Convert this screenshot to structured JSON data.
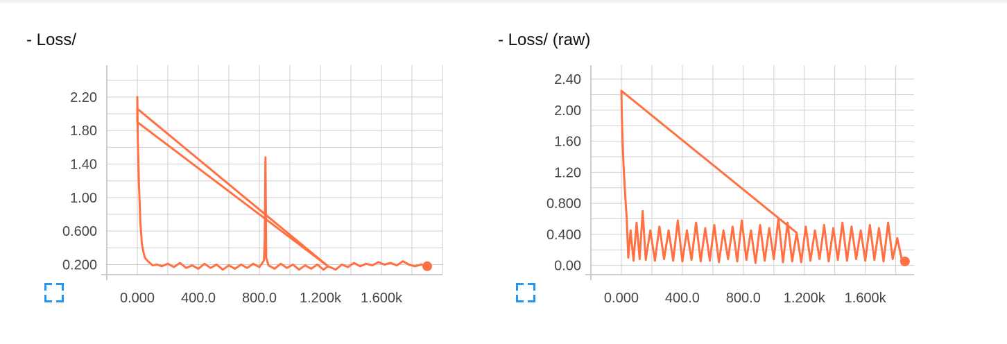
{
  "chart_data": [
    {
      "type": "line",
      "title": "- Loss/",
      "x_ticks": [
        "0.000",
        "400.0",
        "800.0",
        "1.200k",
        "1.600k"
      ],
      "x_tick_values": [
        0,
        400,
        800,
        1200,
        1600
      ],
      "y_ticks": [
        "0.200",
        "0.600",
        "1.00",
        "1.40",
        "1.80",
        "2.20"
      ],
      "y_tick_values": [
        0.2,
        0.6,
        1.0,
        1.4,
        1.8,
        2.2
      ],
      "xlim": [
        -200,
        2000
      ],
      "ylim": [
        0.08,
        2.58
      ],
      "grid": true,
      "series": [
        {
          "color": "#ff7043",
          "points": [
            [
              0,
              2.06
            ],
            [
              1250,
              0.18
            ],
            [
              1220,
              0.14
            ],
            [
              1180,
              0.2
            ],
            [
              1140,
              0.15
            ],
            [
              1100,
              0.19
            ],
            [
              1060,
              0.14
            ],
            [
              1020,
              0.2
            ],
            [
              980,
              0.16
            ],
            [
              940,
              0.21
            ],
            [
              900,
              0.15
            ],
            [
              860,
              0.19
            ],
            [
              845,
              0.28
            ],
            [
              840,
              1.48
            ],
            [
              835,
              0.5
            ],
            [
              830,
              0.25
            ],
            [
              800,
              0.17
            ],
            [
              760,
              0.21
            ],
            [
              720,
              0.16
            ],
            [
              680,
              0.2
            ],
            [
              640,
              0.15
            ],
            [
              600,
              0.19
            ],
            [
              560,
              0.14
            ],
            [
              520,
              0.2
            ],
            [
              480,
              0.16
            ],
            [
              440,
              0.21
            ],
            [
              400,
              0.15
            ],
            [
              360,
              0.19
            ],
            [
              320,
              0.16
            ],
            [
              280,
              0.22
            ],
            [
              240,
              0.17
            ],
            [
              200,
              0.21
            ],
            [
              160,
              0.18
            ],
            [
              130,
              0.2
            ],
            [
              100,
              0.19
            ],
            [
              70,
              0.24
            ],
            [
              50,
              0.28
            ],
            [
              40,
              0.35
            ],
            [
              30,
              0.45
            ],
            [
              20,
              0.7
            ],
            [
              10,
              1.2
            ],
            [
              3,
              1.7
            ],
            [
              0,
              2.2
            ],
            [
              0,
              2.0
            ],
            [
              0,
              1.9
            ],
            [
              1250,
              0.18
            ],
            [
              1300,
              0.14
            ],
            [
              1340,
              0.2
            ],
            [
              1380,
              0.17
            ],
            [
              1420,
              0.22
            ],
            [
              1460,
              0.18
            ],
            [
              1500,
              0.21
            ],
            [
              1540,
              0.19
            ],
            [
              1580,
              0.23
            ],
            [
              1620,
              0.2
            ],
            [
              1660,
              0.22
            ],
            [
              1700,
              0.19
            ],
            [
              1740,
              0.24
            ],
            [
              1780,
              0.2
            ],
            [
              1820,
              0.18
            ],
            [
              1860,
              0.2
            ],
            [
              1900,
              0.18
            ]
          ]
        }
      ]
    },
    {
      "type": "line",
      "title": "- Loss/ (raw)",
      "x_ticks": [
        "0.000",
        "400.0",
        "800.0",
        "1.200k",
        "1.600k"
      ],
      "x_tick_values": [
        0,
        400,
        800,
        1200,
        1600
      ],
      "y_ticks": [
        "0.00",
        "0.400",
        "0.800",
        "1.20",
        "1.60",
        "2.00",
        "2.40"
      ],
      "y_tick_values": [
        0,
        0.4,
        0.8,
        1.2,
        1.6,
        2.0,
        2.4
      ],
      "xlim": [
        -200,
        1920
      ],
      "ylim": [
        -0.12,
        2.58
      ],
      "grid": true,
      "series": [
        {
          "color": "#ff7043",
          "points": [
            [
              0,
              2.25
            ],
            [
              1150,
              0.42
            ],
            [
              1120,
              0.05
            ],
            [
              1090,
              0.55
            ],
            [
              1060,
              0.04
            ],
            [
              1030,
              0.6
            ],
            [
              1000,
              0.08
            ],
            [
              970,
              0.48
            ],
            [
              940,
              0.06
            ],
            [
              910,
              0.52
            ],
            [
              880,
              0.03
            ],
            [
              850,
              0.45
            ],
            [
              820,
              0.07
            ],
            [
              790,
              0.58
            ],
            [
              760,
              0.05
            ],
            [
              730,
              0.5
            ],
            [
              700,
              0.08
            ],
            [
              670,
              0.45
            ],
            [
              640,
              0.04
            ],
            [
              610,
              0.52
            ],
            [
              580,
              0.06
            ],
            [
              550,
              0.48
            ],
            [
              520,
              0.05
            ],
            [
              490,
              0.55
            ],
            [
              460,
              0.07
            ],
            [
              430,
              0.45
            ],
            [
              400,
              0.05
            ],
            [
              370,
              0.58
            ],
            [
              340,
              0.06
            ],
            [
              310,
              0.45
            ],
            [
              280,
              0.08
            ],
            [
              250,
              0.5
            ],
            [
              220,
              0.06
            ],
            [
              190,
              0.45
            ],
            [
              160,
              0.07
            ],
            [
              140,
              0.7
            ],
            [
              120,
              0.08
            ],
            [
              100,
              0.55
            ],
            [
              80,
              0.06
            ],
            [
              60,
              0.45
            ],
            [
              45,
              0.1
            ],
            [
              35,
              0.6
            ],
            [
              25,
              0.9
            ],
            [
              15,
              1.25
            ],
            [
              8,
              1.6
            ],
            [
              3,
              1.95
            ],
            [
              0,
              2.25
            ],
            [
              1150,
              0.42
            ],
            [
              1180,
              0.04
            ],
            [
              1210,
              0.5
            ],
            [
              1240,
              0.06
            ],
            [
              1270,
              0.45
            ],
            [
              1300,
              0.08
            ],
            [
              1330,
              0.52
            ],
            [
              1360,
              0.05
            ],
            [
              1390,
              0.48
            ],
            [
              1420,
              0.07
            ],
            [
              1450,
              0.55
            ],
            [
              1480,
              0.06
            ],
            [
              1510,
              0.5
            ],
            [
              1540,
              0.08
            ],
            [
              1570,
              0.45
            ],
            [
              1600,
              0.06
            ],
            [
              1630,
              0.52
            ],
            [
              1660,
              0.07
            ],
            [
              1690,
              0.48
            ],
            [
              1720,
              0.05
            ],
            [
              1750,
              0.55
            ],
            [
              1780,
              0.08
            ],
            [
              1810,
              0.35
            ],
            [
              1840,
              0.07
            ],
            [
              1860,
              0.05
            ]
          ]
        }
      ]
    }
  ]
}
